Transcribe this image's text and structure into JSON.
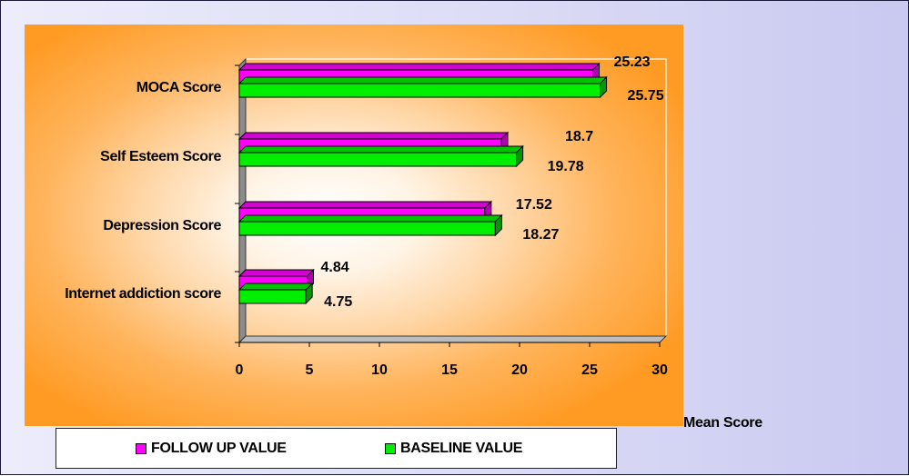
{
  "chart_data": {
    "type": "bar",
    "orientation": "horizontal",
    "categories": [
      "MOCA Score",
      "Self Esteem Score",
      "Depression Score",
      "Internet addiction score"
    ],
    "series": [
      {
        "name": "FOLLOW UP VALUE",
        "color": "#ff00ff",
        "values": [
          25.23,
          18.7,
          17.52,
          4.84
        ],
        "labels": [
          "25.23",
          "18.7",
          "17.52",
          "4.84"
        ]
      },
      {
        "name": "BASELINE VALUE",
        "color": "#00ee00",
        "values": [
          25.75,
          19.78,
          18.27,
          4.75
        ],
        "labels": [
          "25.75",
          "19.78",
          "18.27",
          "4.75"
        ]
      }
    ],
    "xlabel": "Mean Score",
    "xlim": [
      0,
      30
    ],
    "xticks": [
      "0",
      "5",
      "10",
      "15",
      "20",
      "25",
      "30"
    ],
    "grid": false,
    "legend_position": "bottom"
  }
}
